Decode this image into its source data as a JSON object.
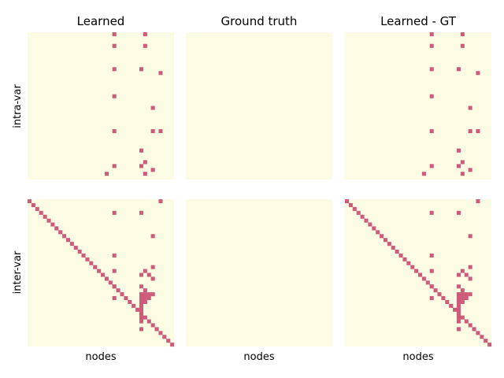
{
  "chart_data": {
    "type": "heatmap",
    "grid_size": 38,
    "background_color": "#fcfbe3",
    "cell_color": "#cd5c7a",
    "column_titles": [
      "Learned",
      "Ground truth",
      "Learned - GT"
    ],
    "row_labels": [
      "intra-var",
      "inter-var"
    ],
    "xlabel": "nodes",
    "panels": {
      "intra_learned": [
        [
          0,
          22
        ],
        [
          0,
          30
        ],
        [
          3,
          22
        ],
        [
          3,
          30
        ],
        [
          9,
          22
        ],
        [
          9,
          29
        ],
        [
          10,
          34
        ],
        [
          16,
          22
        ],
        [
          19,
          32
        ],
        [
          25,
          22
        ],
        [
          25,
          32
        ],
        [
          25,
          34
        ],
        [
          30,
          29
        ],
        [
          33,
          30
        ],
        [
          34,
          22
        ],
        [
          34,
          29
        ],
        [
          35,
          32
        ],
        [
          36,
          30
        ],
        [
          36,
          20
        ]
      ],
      "intra_gt": [],
      "inter_learned": [
        [
          0,
          0
        ],
        [
          1,
          1
        ],
        [
          2,
          2
        ],
        [
          3,
          3
        ],
        [
          4,
          4
        ],
        [
          5,
          5
        ],
        [
          6,
          6
        ],
        [
          7,
          7
        ],
        [
          8,
          8
        ],
        [
          9,
          9
        ],
        [
          10,
          10
        ],
        [
          11,
          11
        ],
        [
          12,
          12
        ],
        [
          13,
          13
        ],
        [
          14,
          14
        ],
        [
          15,
          15
        ],
        [
          16,
          16
        ],
        [
          17,
          17
        ],
        [
          18,
          18
        ],
        [
          19,
          19
        ],
        [
          20,
          20
        ],
        [
          21,
          21
        ],
        [
          22,
          22
        ],
        [
          23,
          23
        ],
        [
          24,
          24
        ],
        [
          25,
          25
        ],
        [
          26,
          26
        ],
        [
          27,
          27
        ],
        [
          28,
          28
        ],
        [
          29,
          29
        ],
        [
          30,
          30
        ],
        [
          31,
          31
        ],
        [
          32,
          32
        ],
        [
          33,
          33
        ],
        [
          34,
          34
        ],
        [
          35,
          35
        ],
        [
          36,
          36
        ],
        [
          37,
          37
        ],
        [
          0,
          34
        ],
        [
          3,
          22
        ],
        [
          3,
          29
        ],
        [
          9,
          32
        ],
        [
          14,
          22
        ],
        [
          17,
          32
        ],
        [
          18,
          22
        ],
        [
          18,
          30
        ],
        [
          19,
          29
        ],
        [
          19,
          31
        ],
        [
          20,
          32
        ],
        [
          22,
          22
        ],
        [
          22,
          29
        ],
        [
          23,
          30
        ],
        [
          24,
          29
        ],
        [
          24,
          30
        ],
        [
          24,
          31
        ],
        [
          24,
          32
        ],
        [
          25,
          22
        ],
        [
          25,
          29
        ],
        [
          25,
          30
        ],
        [
          25,
          31
        ],
        [
          26,
          29
        ],
        [
          26,
          30
        ],
        [
          27,
          29
        ],
        [
          28,
          29
        ],
        [
          29,
          29
        ],
        [
          30,
          29
        ],
        [
          31,
          29
        ],
        [
          33,
          29
        ]
      ],
      "inter_gt": []
    }
  }
}
